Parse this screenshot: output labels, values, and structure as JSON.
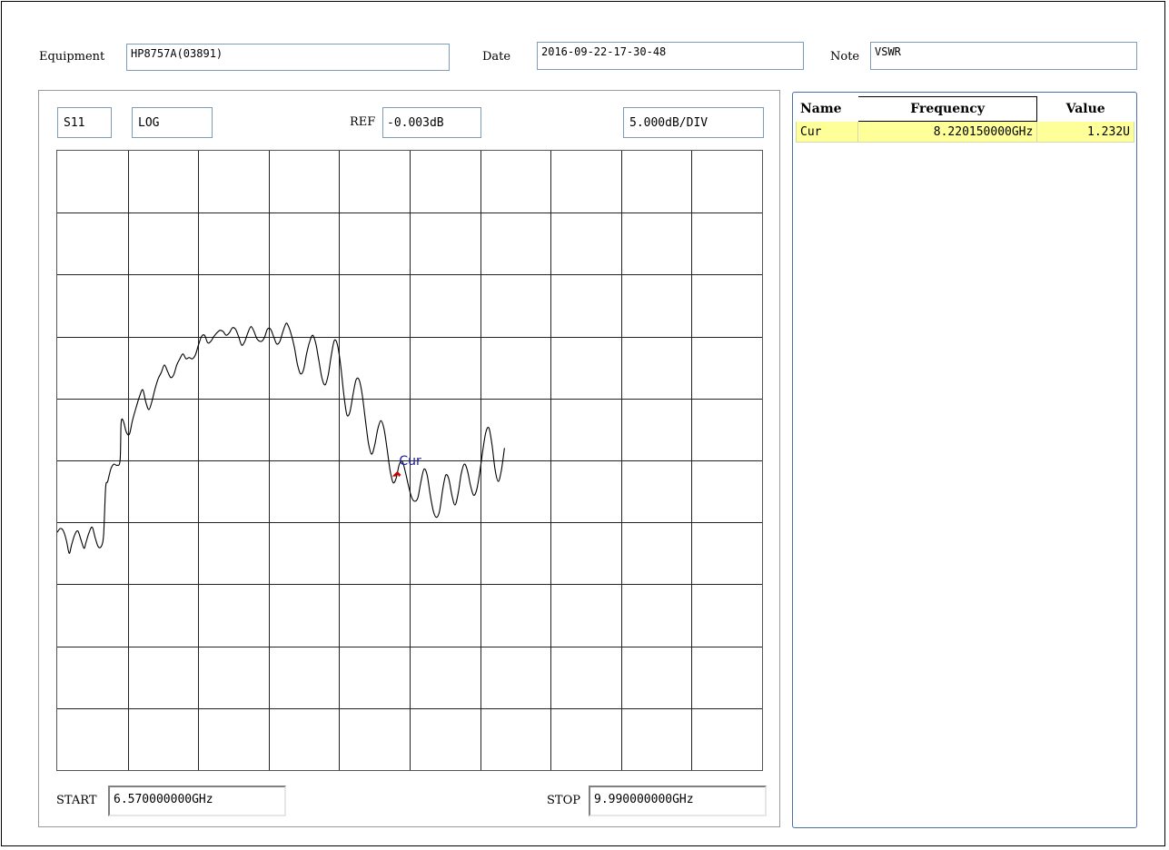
{
  "header": {
    "equipment_label": "Equipment",
    "equipment_value": "HP8757A(03891)",
    "date_label": "Date",
    "date_value": "2016-09-22-17-30-48",
    "note_label": "Note",
    "note_value": "VSWR"
  },
  "chart_panel": {
    "param": "S11",
    "format": "LOG",
    "ref_label": "REF",
    "ref_value": "-0.003dB",
    "scale": "5.000dB/DIV",
    "start_label": "START",
    "start_value": "6.570000000GHz",
    "stop_label": "STOP",
    "stop_value": "9.990000000GHz"
  },
  "chart_data": {
    "type": "line",
    "x_unit": "GHz",
    "y_unit": "dB",
    "xlim": [
      6.57,
      9.99
    ],
    "x_divisions": 10,
    "y_divisions": 10,
    "reference_dB": -0.003,
    "scale_dB_per_div": 5.0,
    "grid": true,
    "trace_color": "#000000",
    "marker": {
      "label": "Cur",
      "x": 8.22015,
      "color": "#cc0000",
      "label_color": "#1a1aa0"
    },
    "series": [
      {
        "points": [
          [
            6.57,
            -30.8
          ],
          [
            6.585,
            -30.5
          ],
          [
            6.6,
            -30.7
          ],
          [
            6.615,
            -31.5
          ],
          [
            6.628,
            -32.5
          ],
          [
            6.64,
            -31.8
          ],
          [
            6.655,
            -31.0
          ],
          [
            6.67,
            -30.7
          ],
          [
            6.685,
            -31.4
          ],
          [
            6.7,
            -32.1
          ],
          [
            6.71,
            -31.6
          ],
          [
            6.725,
            -30.8
          ],
          [
            6.74,
            -30.4
          ],
          [
            6.755,
            -31.3
          ],
          [
            6.77,
            -32.0
          ],
          [
            6.785,
            -31.9
          ],
          [
            6.795,
            -31.0
          ],
          [
            6.805,
            -27.2
          ],
          [
            6.815,
            -26.7
          ],
          [
            6.83,
            -25.7
          ],
          [
            6.845,
            -25.3
          ],
          [
            6.86,
            -25.4
          ],
          [
            6.875,
            -25.0
          ],
          [
            6.88,
            -22.0
          ],
          [
            6.89,
            -21.8
          ],
          [
            6.905,
            -22.7
          ],
          [
            6.92,
            -22.9
          ],
          [
            6.935,
            -21.8
          ],
          [
            6.955,
            -20.6
          ],
          [
            6.97,
            -19.8
          ],
          [
            6.985,
            -19.3
          ],
          [
            7.0,
            -20.3
          ],
          [
            7.015,
            -20.9
          ],
          [
            7.03,
            -20.2
          ],
          [
            7.045,
            -19.2
          ],
          [
            7.06,
            -18.4
          ],
          [
            7.075,
            -17.9
          ],
          [
            7.09,
            -17.3
          ],
          [
            7.105,
            -17.8
          ],
          [
            7.12,
            -18.3
          ],
          [
            7.135,
            -18.1
          ],
          [
            7.15,
            -17.3
          ],
          [
            7.165,
            -16.8
          ],
          [
            7.18,
            -16.4
          ],
          [
            7.195,
            -16.8
          ],
          [
            7.21,
            -16.7
          ],
          [
            7.225,
            -16.8
          ],
          [
            7.24,
            -16.5
          ],
          [
            7.255,
            -15.7
          ],
          [
            7.27,
            -15.0
          ],
          [
            7.285,
            -14.9
          ],
          [
            7.3,
            -15.5
          ],
          [
            7.315,
            -15.4
          ],
          [
            7.33,
            -15.0
          ],
          [
            7.345,
            -14.7
          ],
          [
            7.36,
            -14.5
          ],
          [
            7.375,
            -14.6
          ],
          [
            7.39,
            -14.9
          ],
          [
            7.405,
            -14.7
          ],
          [
            7.42,
            -14.3
          ],
          [
            7.435,
            -14.4
          ],
          [
            7.45,
            -15.0
          ],
          [
            7.465,
            -15.7
          ],
          [
            7.48,
            -15.4
          ],
          [
            7.495,
            -14.7
          ],
          [
            7.51,
            -14.2
          ],
          [
            7.525,
            -14.6
          ],
          [
            7.54,
            -15.2
          ],
          [
            7.56,
            -15.4
          ],
          [
            7.575,
            -15.1
          ],
          [
            7.59,
            -14.4
          ],
          [
            7.605,
            -14.4
          ],
          [
            7.62,
            -15.0
          ],
          [
            7.635,
            -15.6
          ],
          [
            7.65,
            -15.4
          ],
          [
            7.665,
            -14.6
          ],
          [
            7.68,
            -13.95
          ],
          [
            7.69,
            -14.1
          ],
          [
            7.705,
            -14.8
          ],
          [
            7.72,
            -15.8
          ],
          [
            7.735,
            -17.2
          ],
          [
            7.75,
            -18.0
          ],
          [
            7.765,
            -17.7
          ],
          [
            7.78,
            -16.4
          ],
          [
            7.795,
            -15.4
          ],
          [
            7.81,
            -14.9
          ],
          [
            7.825,
            -15.6
          ],
          [
            7.84,
            -17.0
          ],
          [
            7.855,
            -18.4
          ],
          [
            7.87,
            -18.9
          ],
          [
            7.885,
            -18.1
          ],
          [
            7.9,
            -16.5
          ],
          [
            7.915,
            -15.3
          ],
          [
            7.93,
            -15.7
          ],
          [
            7.945,
            -17.3
          ],
          [
            7.96,
            -19.6
          ],
          [
            7.975,
            -21.3
          ],
          [
            7.99,
            -21.1
          ],
          [
            8.005,
            -19.7
          ],
          [
            8.02,
            -18.5
          ],
          [
            8.035,
            -18.5
          ],
          [
            8.05,
            -19.7
          ],
          [
            8.065,
            -21.7
          ],
          [
            8.08,
            -23.6
          ],
          [
            8.095,
            -24.5
          ],
          [
            8.11,
            -23.8
          ],
          [
            8.125,
            -22.5
          ],
          [
            8.14,
            -21.8
          ],
          [
            8.155,
            -22.4
          ],
          [
            8.17,
            -24.0
          ],
          [
            8.185,
            -25.8
          ],
          [
            8.2,
            -26.8
          ],
          [
            8.215,
            -26.4
          ],
          [
            8.23,
            -25.3
          ],
          [
            8.245,
            -25.1
          ],
          [
            8.26,
            -26.0
          ],
          [
            8.275,
            -27.1
          ],
          [
            8.29,
            -28.0
          ],
          [
            8.305,
            -28.3
          ],
          [
            8.32,
            -28.0
          ],
          [
            8.335,
            -26.7
          ],
          [
            8.35,
            -25.7
          ],
          [
            8.365,
            -26.2
          ],
          [
            8.38,
            -27.8
          ],
          [
            8.395,
            -29.1
          ],
          [
            8.41,
            -29.6
          ],
          [
            8.425,
            -29.1
          ],
          [
            8.44,
            -27.4
          ],
          [
            8.455,
            -26.2
          ],
          [
            8.47,
            -26.5
          ],
          [
            8.485,
            -27.8
          ],
          [
            8.5,
            -28.6
          ],
          [
            8.515,
            -27.7
          ],
          [
            8.53,
            -26.1
          ],
          [
            8.545,
            -25.3
          ],
          [
            8.56,
            -25.8
          ],
          [
            8.575,
            -27.0
          ],
          [
            8.59,
            -27.8
          ],
          [
            8.605,
            -27.4
          ],
          [
            8.62,
            -26.0
          ],
          [
            8.635,
            -24.2
          ],
          [
            8.65,
            -22.7
          ],
          [
            8.665,
            -22.4
          ],
          [
            8.68,
            -23.8
          ],
          [
            8.695,
            -25.8
          ],
          [
            8.71,
            -26.7
          ],
          [
            8.725,
            -25.8
          ],
          [
            8.74,
            -24.0
          ]
        ]
      }
    ]
  },
  "marker_table": {
    "headers": [
      "Name",
      "Frequency",
      "Value"
    ],
    "rows": [
      {
        "name": "Cur",
        "frequency": "8.220150000GHz",
        "value": "1.232U"
      }
    ]
  }
}
